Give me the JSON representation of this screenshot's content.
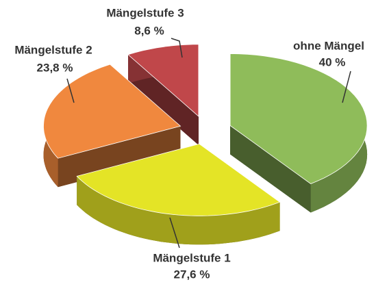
{
  "chart_data": {
    "type": "pie",
    "categories": [
      "ohne Mängel",
      "Mängelstufe 1",
      "Mängelstufe 2",
      "Mängelstufe 3"
    ],
    "values": [
      40,
      27.6,
      23.8,
      8.6
    ],
    "value_labels": [
      "40 %",
      "27,6 %",
      "23,8 %",
      "8,6 %"
    ],
    "colors": [
      "#8fbc5a",
      "#e4e426",
      "#f0883e",
      "#c0474a"
    ]
  }
}
